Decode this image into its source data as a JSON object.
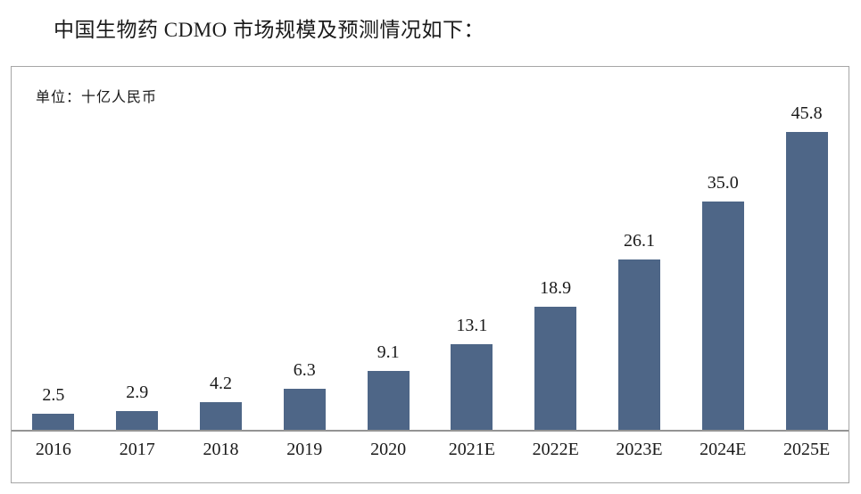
{
  "page": {
    "title": "中国生物药 CDMO 市场规模及预测情况如下："
  },
  "chart": {
    "unit_label": "单位：十亿人民币"
  },
  "chart_data": {
    "type": "bar",
    "title": "中国生物药 CDMO 市场规模及预测情况如下：",
    "unit_note": "单位：十亿人民币",
    "categories": [
      "2016",
      "2017",
      "2018",
      "2019",
      "2020",
      "2021E",
      "2022E",
      "2023E",
      "2024E",
      "2025E"
    ],
    "values": [
      2.5,
      2.9,
      4.2,
      6.3,
      9.1,
      13.1,
      18.9,
      26.1,
      35.0,
      45.8
    ],
    "value_labels": [
      "2.5",
      "2.9",
      "4.2",
      "6.3",
      "9.1",
      "13.1",
      "18.9",
      "26.1",
      "35.0",
      "45.8"
    ],
    "xlabel": "",
    "ylabel": "单位：十亿人民币",
    "ylim": [
      0,
      50
    ],
    "grid": false,
    "legend": null,
    "bar_color": "#4e6687"
  },
  "colors": {
    "bar": "#4e6687",
    "frame_border": "#a6a6a6",
    "axis_line": "#949494",
    "text": "#1a1a1a"
  }
}
